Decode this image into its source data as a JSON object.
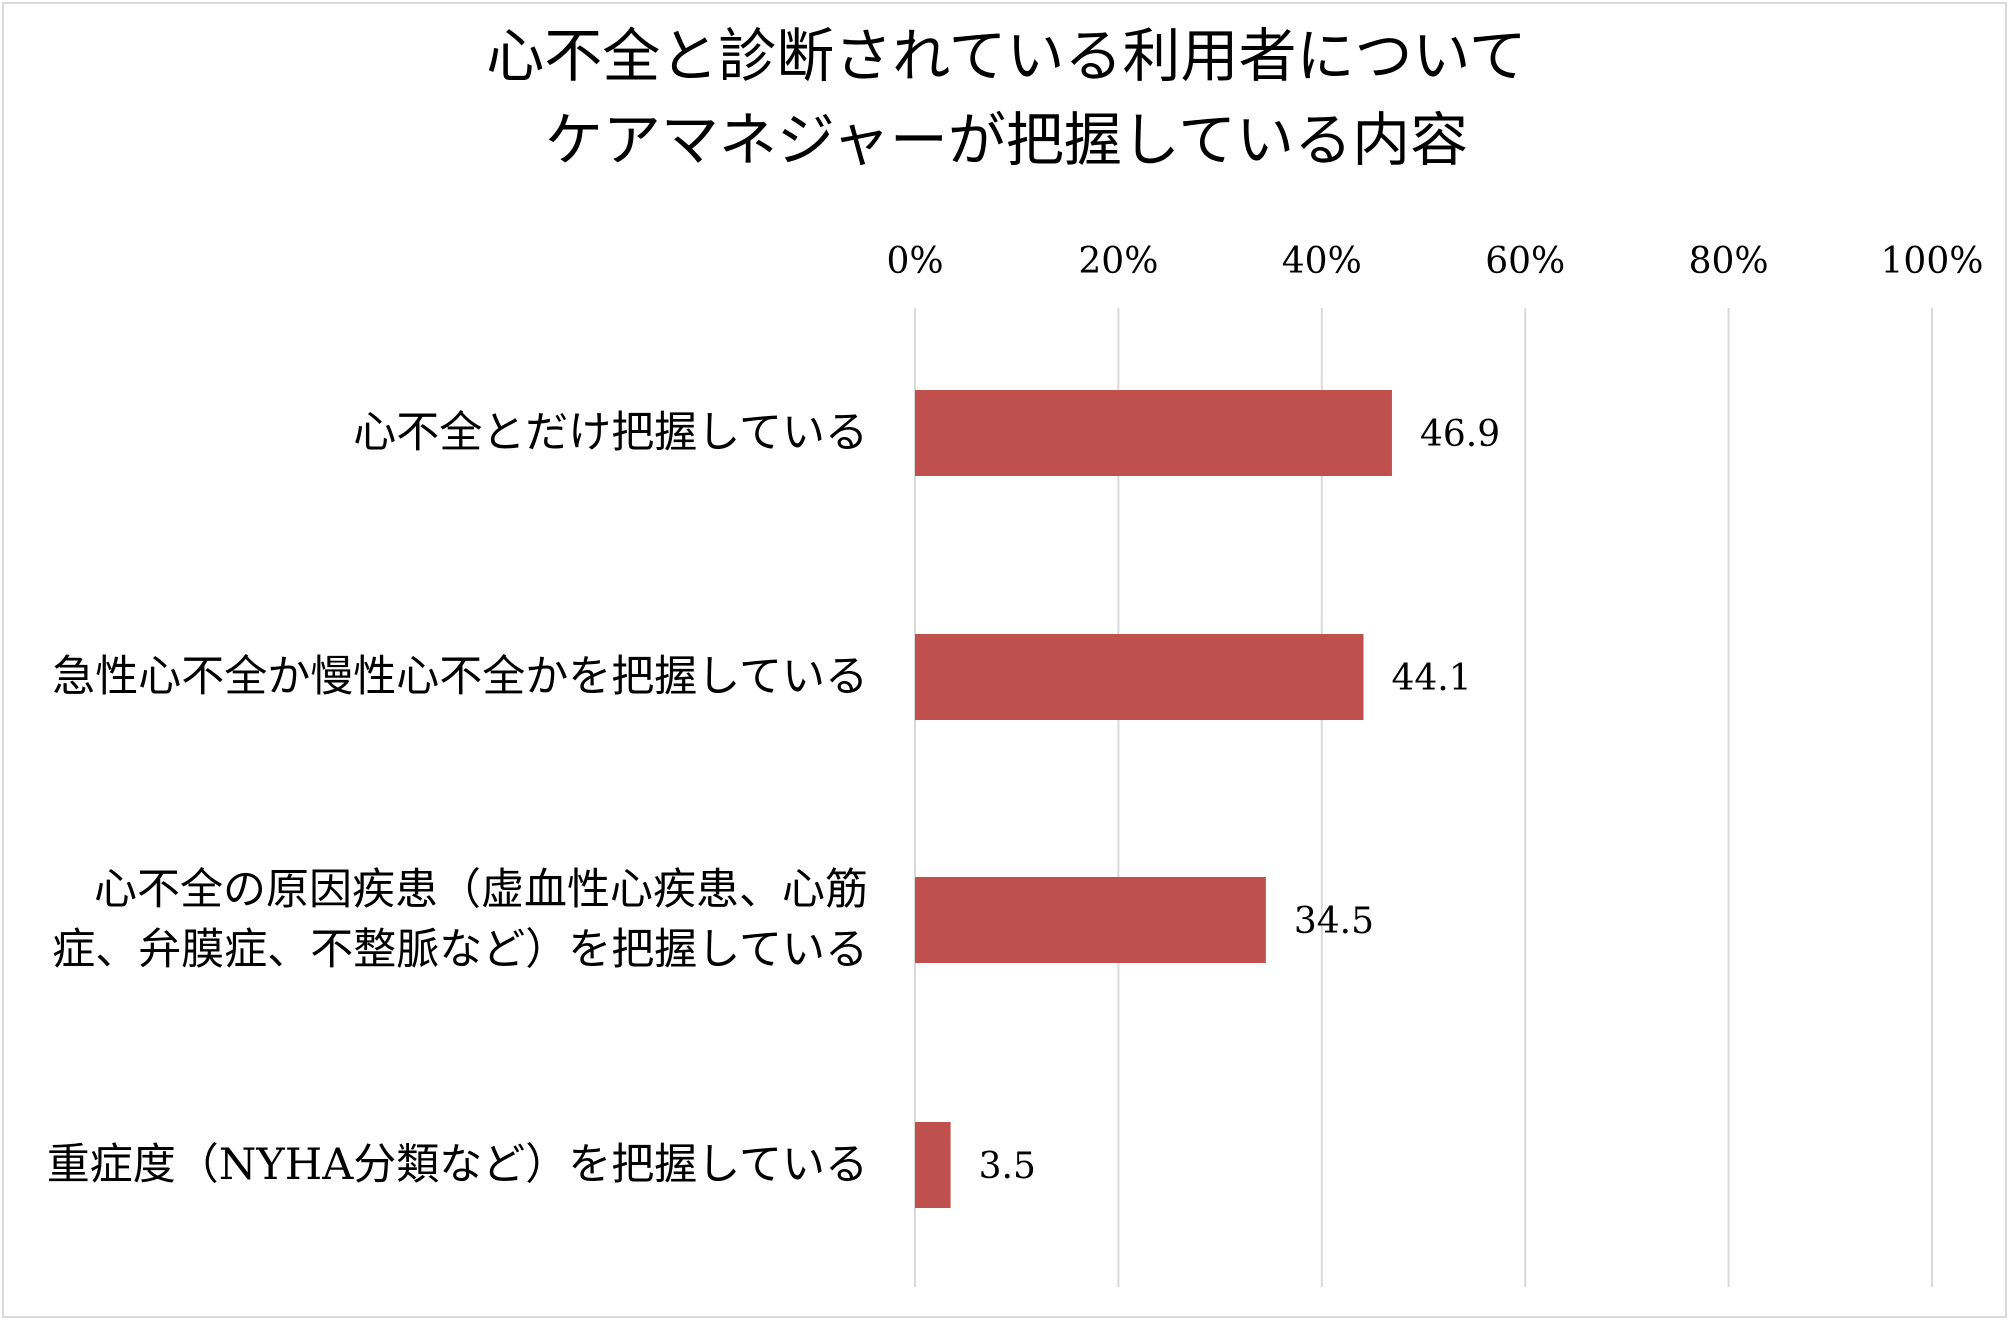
{
  "chart_data": {
    "type": "bar",
    "orientation": "horizontal",
    "title_lines": [
      "心不全と診断されている利用者について",
      "ケアマネジャーが把握している内容"
    ],
    "categories": [
      "心不全とだけ把握している",
      "急性心不全か慢性心不全かを把握している",
      "心不全の原因疾患（虚血性心疾患、心筋症、弁膜症、不整脈など）を把握している",
      "重症度（NYHA分類など）を把握している"
    ],
    "values": [
      46.9,
      44.1,
      34.5,
      3.5
    ],
    "value_labels": [
      "46.9",
      "44.1",
      "34.5",
      "3.5"
    ],
    "xlim": [
      0,
      100
    ],
    "x_ticks": [
      0,
      20,
      40,
      60,
      80,
      100
    ],
    "x_tick_labels": [
      "0%",
      "20%",
      "40%",
      "60%",
      "80%",
      "100%"
    ],
    "x_axis_position": "top",
    "grid": true,
    "legend": "none",
    "colors": {
      "bar": "#c0504d",
      "grid": "#d9d9d9",
      "border": "#d9d9d9"
    }
  }
}
